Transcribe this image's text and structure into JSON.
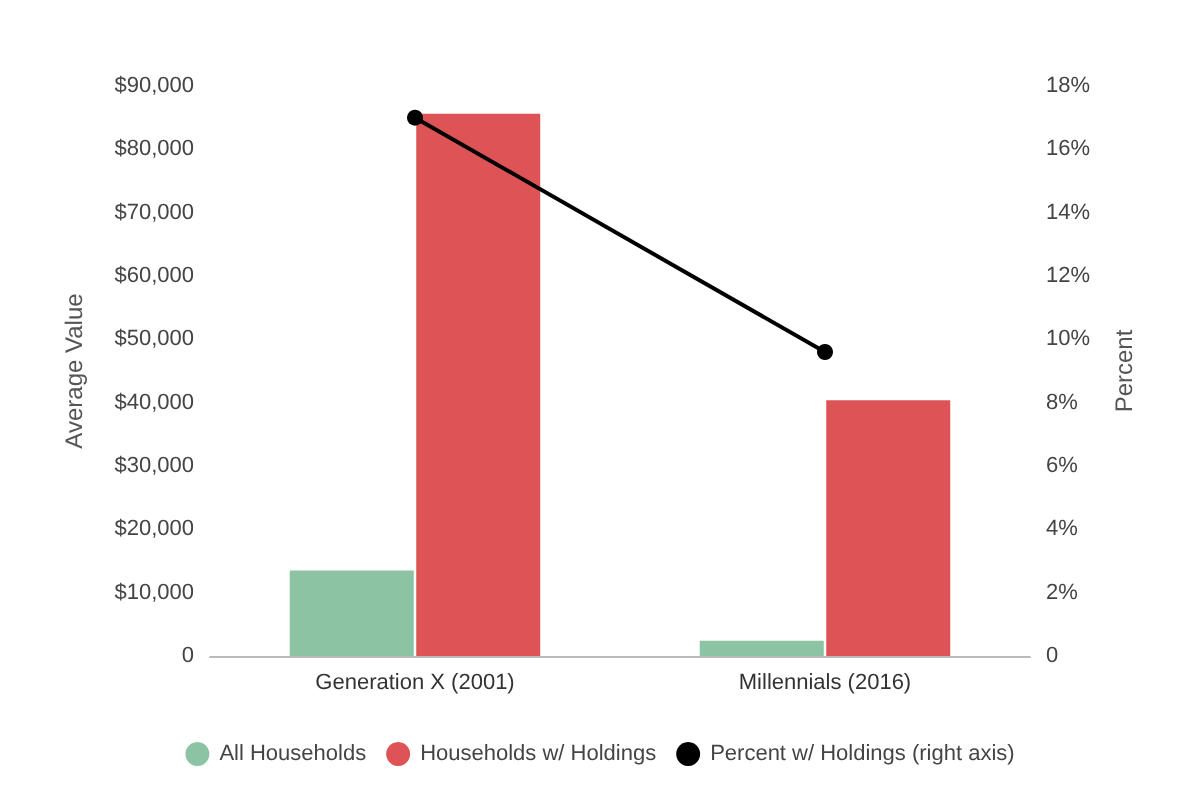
{
  "chart_data": {
    "type": "bar",
    "ylabel": "Average Value",
    "y2label": "Percent",
    "categories": [
      "Generation X (2001)",
      "Millennials (2016)"
    ],
    "series": [
      {
        "name": "All Households",
        "color": "#8cc3a3",
        "values": [
          13500,
          2400
        ]
      },
      {
        "name": "Households w/ Holdings",
        "color": "#dd5356",
        "values": [
          85600,
          40400
        ]
      },
      {
        "name": "Percent w/ Holdings (right axis)",
        "type": "line",
        "axis": "y2",
        "color": "#000000",
        "marker": "circle",
        "values": [
          17.0,
          9.6
        ]
      }
    ],
    "ylim": [
      0,
      90000
    ],
    "yticks": [
      {
        "value": 0,
        "label": "0"
      },
      {
        "value": 10000,
        "label": "$10,000"
      },
      {
        "value": 20000,
        "label": "$20,000"
      },
      {
        "value": 30000,
        "label": "$30,000"
      },
      {
        "value": 40000,
        "label": "$40,000"
      },
      {
        "value": 50000,
        "label": "$50,000"
      },
      {
        "value": 60000,
        "label": "$60,000"
      },
      {
        "value": 70000,
        "label": "$70,000"
      },
      {
        "value": 80000,
        "label": "$80,000"
      },
      {
        "value": 90000,
        "label": "$90,000"
      }
    ],
    "y2lim": [
      0,
      18
    ],
    "y2ticks": [
      {
        "value": 0,
        "label": "0"
      },
      {
        "value": 2,
        "label": "2%"
      },
      {
        "value": 4,
        "label": "4%"
      },
      {
        "value": 6,
        "label": "6%"
      },
      {
        "value": 8,
        "label": "8%"
      },
      {
        "value": 10,
        "label": "10%"
      },
      {
        "value": 12,
        "label": "12%"
      },
      {
        "value": 14,
        "label": "14%"
      },
      {
        "value": 16,
        "label": "16%"
      },
      {
        "value": 18,
        "label": "18%"
      }
    ],
    "grid": false,
    "legend": "bottom"
  }
}
